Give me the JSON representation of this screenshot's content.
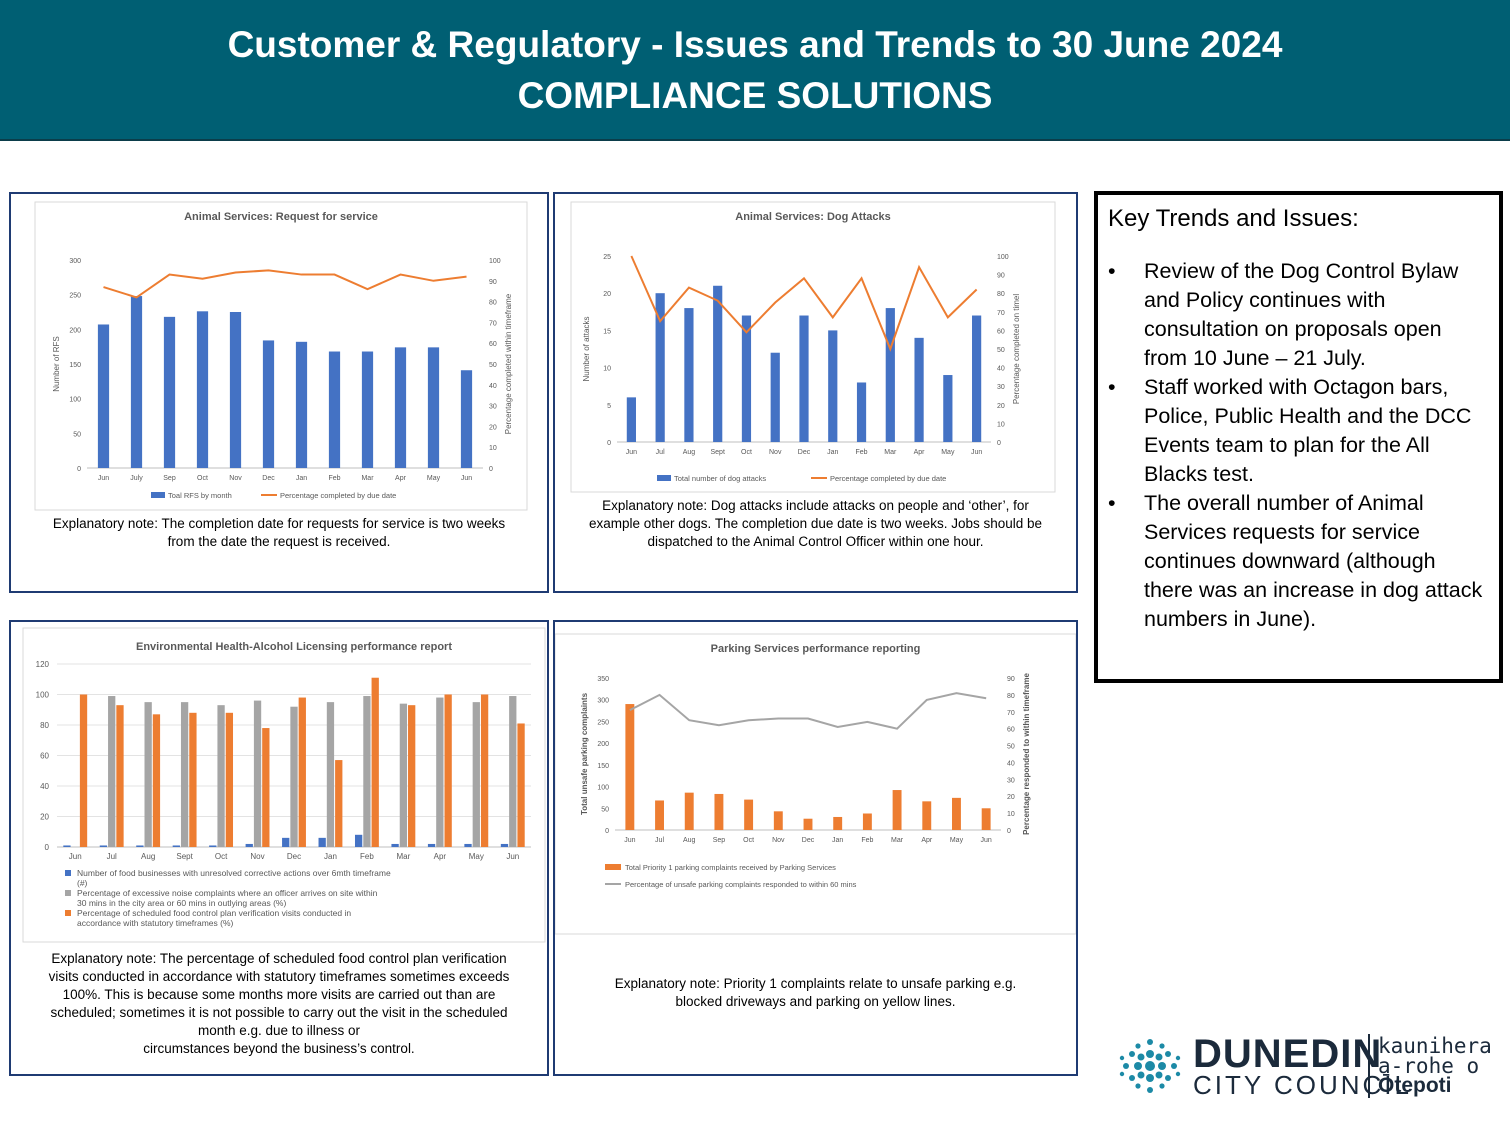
{
  "header": {
    "title_line1": "Customer & Regulatory - Issues and Trends to 30 June 2024",
    "title_line2": "COMPLIANCE SOLUTIONS"
  },
  "notes": {
    "rfs": "Explanatory note: The completion date for requests for service is two weeks from the date the request is received.",
    "dog": "Explanatory note: Dog attacks include attacks on people and ‘other’, for example other dogs. The completion due date is two weeks.  Jobs should be dispatched to the Animal Control Officer within one hour.",
    "env_lines": [
      "Explanatory note: The percentage of scheduled food control plan verification",
      "visits conducted in accordance with statutory timeframes sometimes exceeds",
      "100%. This is because some months more visits are carried out than are",
      "scheduled; sometimes it is not possible to carry out the visit in the scheduled",
      "month e.g. due to illness or",
      "circumstances beyond the business’s control."
    ],
    "parking": "Explanatory note: Priority 1 complaints relate to unsafe parking e.g. blocked driveways and parking on yellow lines."
  },
  "key_trends": {
    "title": "Key Trends and Issues:",
    "bullet": "•",
    "items": [
      "Review of the Dog Control Bylaw and Policy continues with consultation on proposals open from 10 June – 21 July.",
      "Staff worked with Octagon bars, Police, Public Health and the DCC Events team to plan for the All Blacks test.",
      "The overall number of Animal Services requests for service continues downward (although there was an increase in dog attack numbers in June)."
    ]
  },
  "logo": {
    "name": "DUNEDIN",
    "sub": "CITY COUNCIL",
    "maori1": "kaunihera",
    "maori2": "a-rohe o",
    "maori3": "Ōtepoti",
    "accent_color": "#1c8aa6"
  },
  "colors": {
    "bar_blue": "#4472c4",
    "line_orange": "#ed7d31",
    "gray": "#a5a5a5",
    "header_bg": "#005f73"
  },
  "chart_data": [
    {
      "id": "rfs",
      "type": "bar",
      "title": "Animal Services: Request for service",
      "categories": [
        "Jun",
        "July",
        "Sep",
        "Oct",
        "Nov",
        "Dec",
        "Jan",
        "Feb",
        "Mar",
        "Apr",
        "May",
        "Jun"
      ],
      "series": [
        {
          "name": "Toal RFS by month",
          "type": "bar",
          "axis": "left",
          "values": [
            207,
            248,
            218,
            226,
            225,
            184,
            182,
            168,
            168,
            174,
            174,
            141
          ]
        },
        {
          "name": "Percentage completed by due date",
          "type": "line",
          "axis": "right",
          "values": [
            87,
            82,
            93,
            91,
            94,
            95,
            93,
            93,
            86,
            93,
            90,
            92
          ]
        }
      ],
      "ylabel": "Number of RFS",
      "y2label": "Percentage completed within timeframe",
      "ylim": [
        0,
        300
      ],
      "yticks": [
        0,
        50,
        100,
        150,
        200,
        250,
        300
      ],
      "y2lim": [
        0,
        100
      ],
      "y2ticks": [
        0,
        10,
        20,
        30,
        40,
        50,
        60,
        70,
        80,
        90,
        100
      ],
      "legend": "bottom",
      "grid": false
    },
    {
      "id": "dog",
      "type": "bar",
      "title": "Animal Services: Dog Attacks",
      "categories": [
        "Jun",
        "Jul",
        "Aug",
        "Sept",
        "Oct",
        "Nov",
        "Dec",
        "Jan",
        "Feb",
        "Mar",
        "Apr",
        "May",
        "Jun"
      ],
      "series": [
        {
          "name": "Total number of dog attacks",
          "type": "bar",
          "axis": "left",
          "values": [
            6,
            20,
            18,
            21,
            17,
            12,
            17,
            15,
            8,
            18,
            14,
            9,
            17
          ]
        },
        {
          "name": "Percentage completed by due date",
          "type": "line",
          "axis": "right",
          "values": [
            100,
            65,
            83,
            76,
            59,
            75,
            88,
            67,
            88,
            50,
            94,
            67,
            82
          ]
        }
      ],
      "ylabel": "Number of attacks",
      "y2label": "Percentage completed on timel",
      "ylim": [
        0,
        25
      ],
      "yticks": [
        0,
        5,
        10,
        15,
        20,
        25
      ],
      "y2lim": [
        0,
        100
      ],
      "y2ticks": [
        0,
        10,
        20,
        30,
        40,
        50,
        60,
        70,
        80,
        90,
        100
      ],
      "legend": "bottom",
      "grid": false
    },
    {
      "id": "env",
      "type": "bar",
      "title": "Environmental Health-Alcohol Licensing performance report",
      "categories": [
        "Jun",
        "Jul",
        "Aug",
        "Sept",
        "Oct",
        "Nov",
        "Dec",
        "Jan",
        "Feb",
        "Mar",
        "Apr",
        "May",
        "Jun"
      ],
      "series": [
        {
          "name": "Number of food businesses with unresolved corrective actions over 6mth timeframe (#)",
          "type": "bar",
          "values": [
            1,
            1,
            1,
            1,
            1,
            2,
            6,
            6,
            8,
            2,
            2,
            2,
            2
          ]
        },
        {
          "name": "Percentage of excessive noise complaints where an officer arrives on site within 30 mins in the city area or 60 mins in outlying areas (%)",
          "type": "bar",
          "values": [
            0,
            99,
            95,
            95,
            93,
            96,
            92,
            95,
            99,
            94,
            98,
            95,
            99
          ]
        },
        {
          "name": "Percentage of scheduled food control plan verification visits conducted in accordance with statutory timeframes (%)",
          "type": "bar",
          "values": [
            100,
            93,
            87,
            88,
            88,
            78,
            98,
            57,
            111,
            93,
            100,
            100,
            81
          ]
        }
      ],
      "ylim": [
        0,
        120
      ],
      "yticks": [
        0,
        20,
        40,
        60,
        80,
        100,
        120
      ],
      "legend": "bottom",
      "grid": true
    },
    {
      "id": "parking",
      "type": "bar",
      "title": "Parking Services performance reporting",
      "categories": [
        "Jun",
        "Jul",
        "Aug",
        "Sep",
        "Oct",
        "Nov",
        "Dec",
        "Jan",
        "Feb",
        "Mar",
        "Apr",
        "May",
        "Jun"
      ],
      "series": [
        {
          "name": "Total Priority 1 parking complaints received by Parking Services",
          "type": "bar",
          "axis": "left",
          "values": [
            290,
            68,
            86,
            83,
            70,
            43,
            26,
            30,
            38,
            92,
            66,
            74,
            50
          ]
        },
        {
          "name": "Percentage of unsafe parking complaints responded to within 60 mins",
          "type": "line",
          "axis": "right",
          "values": [
            71,
            80,
            65,
            62,
            65,
            66,
            66,
            61,
            64,
            60,
            77,
            81,
            78
          ]
        }
      ],
      "ylabel": "Total unsafe parking complaints",
      "y2label": "Percentage responded to within timeframe",
      "ylim": [
        0,
        350
      ],
      "yticks": [
        0,
        50,
        100,
        150,
        200,
        250,
        300,
        350
      ],
      "y2lim": [
        0,
        90
      ],
      "y2ticks": [
        0,
        10,
        20,
        30,
        40,
        50,
        60,
        70,
        80,
        90
      ],
      "legend": "bottom",
      "grid": false
    }
  ]
}
